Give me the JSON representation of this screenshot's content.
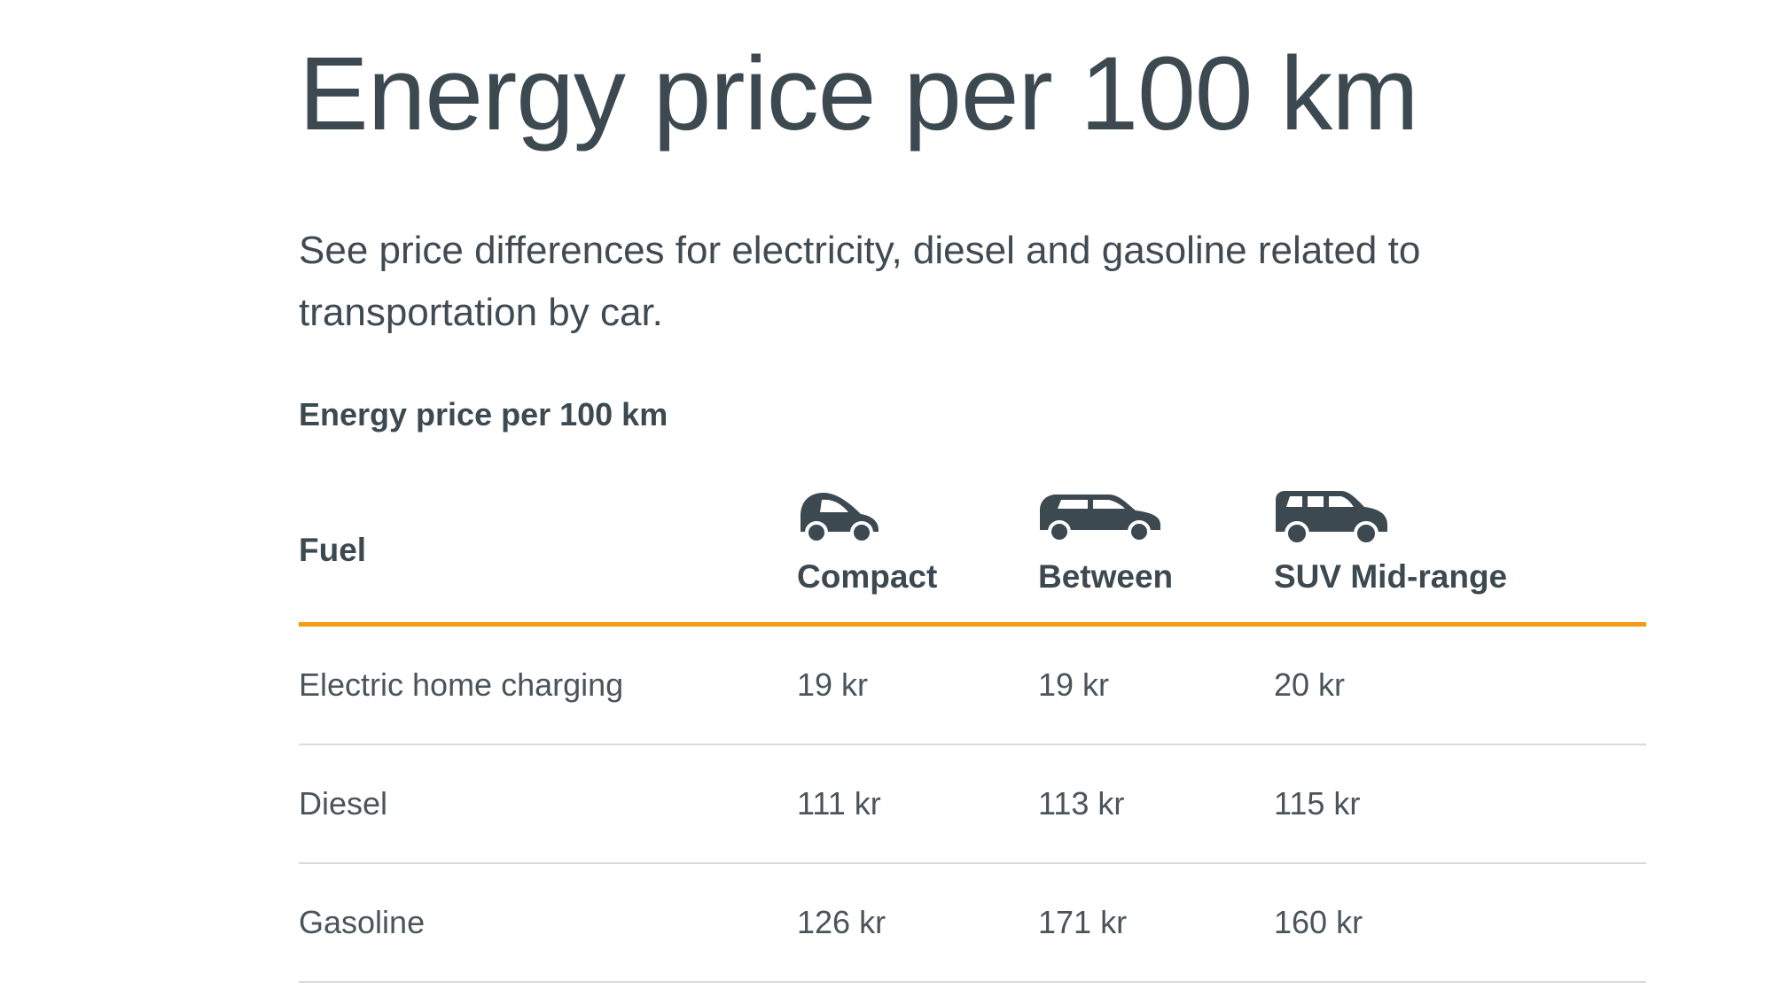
{
  "page": {
    "title": "Energy price per 100 km",
    "intro": "See price differences for electricity, diesel and gasoline related to transportation by car."
  },
  "table": {
    "caption": "Energy price per 100 km",
    "accent_color": "#f39c12",
    "columns": [
      {
        "label": "Fuel",
        "icon": ""
      },
      {
        "label": "Compact",
        "icon": "compact-car-icon"
      },
      {
        "label": "Between",
        "icon": "hatchback-car-icon"
      },
      {
        "label": "SUV Mid-range",
        "icon": "suv-icon"
      }
    ],
    "rows": [
      {
        "fuel": "Electric home charging",
        "compact": "19 kr",
        "between": "19 kr",
        "suv": "20 kr"
      },
      {
        "fuel": "Diesel",
        "compact": "111 kr",
        "between": "113 kr",
        "suv": "115 kr"
      },
      {
        "fuel": "Gasoline",
        "compact": "126 kr",
        "between": "171 kr",
        "suv": "160 kr"
      }
    ]
  }
}
